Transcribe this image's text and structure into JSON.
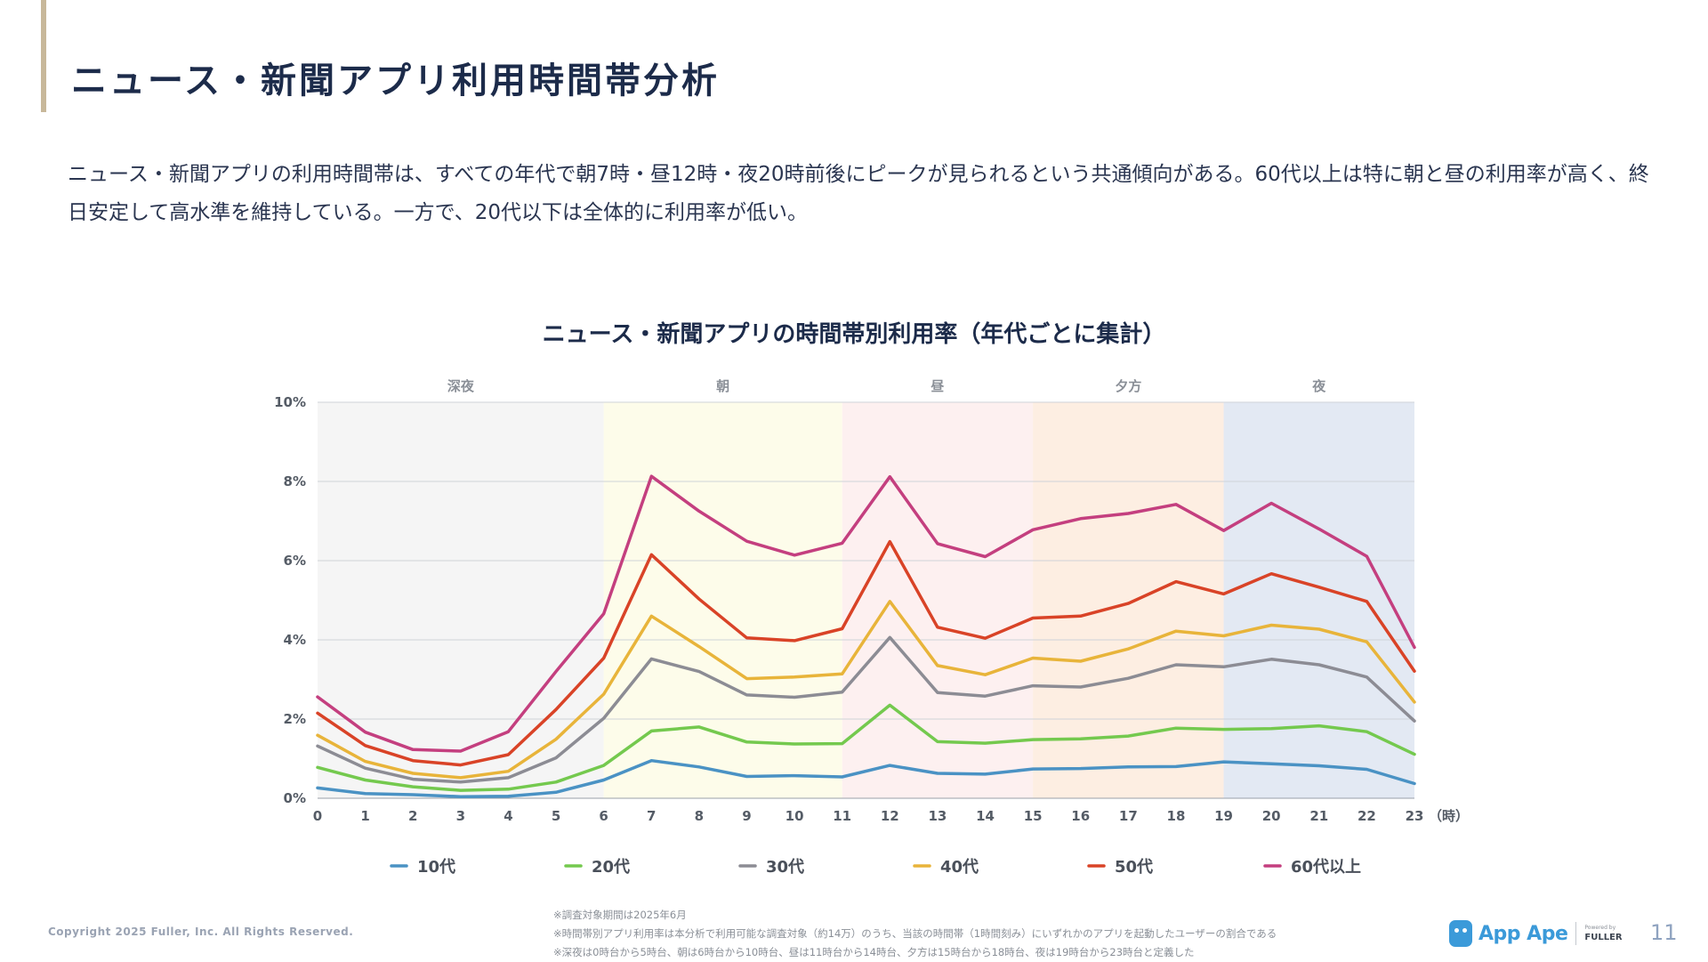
{
  "header": {
    "title": "ニュース・新聞アプリ利用時間帯分析",
    "description": "ニュース・新聞アプリの利用時間帯は、すべての年代で朝7時・昼12時・夜20時前後にピークが見られるという共通傾向がある。60代以上は特に朝と昼の利用率が高く、終日安定して高水準を維持している。一方で、20代以下は全体的に利用率が低い。"
  },
  "chart_data": {
    "type": "line",
    "title": "ニュース・新聞アプリの時間帯別利用率（年代ごとに集計）",
    "xlabel": "（時）",
    "ylabel": "",
    "x": [
      0,
      1,
      2,
      3,
      4,
      5,
      6,
      7,
      8,
      9,
      10,
      11,
      12,
      13,
      14,
      15,
      16,
      17,
      18,
      19,
      20,
      21,
      22,
      23
    ],
    "ylim": [
      0,
      10
    ],
    "yticks": [
      "0%",
      "2%",
      "4%",
      "6%",
      "8%",
      "10%"
    ],
    "grid": true,
    "legend_position": "bottom",
    "periods": [
      {
        "label": "深夜",
        "start": 0,
        "end": 6,
        "color": "#f5f5f5"
      },
      {
        "label": "朝",
        "start": 6,
        "end": 11,
        "color": "#fdfcea"
      },
      {
        "label": "昼",
        "start": 11,
        "end": 15,
        "color": "#fdf0f0"
      },
      {
        "label": "夕方",
        "start": 15,
        "end": 19,
        "color": "#fdeee2"
      },
      {
        "label": "夜",
        "start": 19,
        "end": 23,
        "color": "#e3e9f3"
      }
    ],
    "series": [
      {
        "name": "10代",
        "color": "#4a92c4",
        "values": [
          0.26,
          0.12,
          0.09,
          0.04,
          0.05,
          0.15,
          0.46,
          0.95,
          0.79,
          0.55,
          0.57,
          0.54,
          0.83,
          0.63,
          0.61,
          0.74,
          0.75,
          0.79,
          0.8,
          0.92,
          0.87,
          0.82,
          0.73,
          0.37
        ]
      },
      {
        "name": "20代",
        "color": "#74c94e",
        "values": [
          0.78,
          0.46,
          0.29,
          0.2,
          0.23,
          0.41,
          0.83,
          1.7,
          1.8,
          1.42,
          1.37,
          1.38,
          2.35,
          1.43,
          1.39,
          1.48,
          1.5,
          1.57,
          1.77,
          1.74,
          1.76,
          1.83,
          1.68,
          1.11
        ]
      },
      {
        "name": "30代",
        "color": "#8c8c94",
        "values": [
          1.32,
          0.76,
          0.48,
          0.41,
          0.52,
          1.02,
          2.02,
          3.52,
          3.2,
          2.61,
          2.55,
          2.68,
          4.06,
          2.67,
          2.58,
          2.84,
          2.81,
          3.03,
          3.37,
          3.32,
          3.51,
          3.37,
          3.06,
          1.95
        ]
      },
      {
        "name": "40代",
        "color": "#e8b43a",
        "values": [
          1.59,
          0.93,
          0.63,
          0.52,
          0.68,
          1.49,
          2.63,
          4.6,
          3.83,
          3.02,
          3.06,
          3.14,
          4.97,
          3.35,
          3.12,
          3.54,
          3.46,
          3.77,
          4.22,
          4.1,
          4.37,
          4.27,
          3.95,
          2.43
        ]
      },
      {
        "name": "50代",
        "color": "#d94327",
        "values": [
          2.15,
          1.33,
          0.95,
          0.84,
          1.1,
          2.24,
          3.54,
          6.15,
          5.03,
          4.05,
          3.98,
          4.28,
          6.48,
          4.32,
          4.04,
          4.55,
          4.6,
          4.92,
          5.47,
          5.16,
          5.67,
          5.33,
          4.97,
          3.21
        ]
      },
      {
        "name": "60代以上",
        "color": "#c43f7f",
        "values": [
          2.56,
          1.67,
          1.23,
          1.19,
          1.68,
          3.2,
          4.66,
          8.13,
          7.25,
          6.49,
          6.14,
          6.44,
          8.12,
          6.43,
          6.1,
          6.78,
          7.06,
          7.19,
          7.42,
          6.76,
          7.45,
          6.8,
          6.11,
          3.81
        ]
      }
    ]
  },
  "footer": {
    "copyright": "Copyright 2025 Fuller, Inc. All Rights Reserved.",
    "notes": [
      "※調査対象期間は2025年6月",
      "※時間帯別アプリ利用率は本分析で利用可能な調査対象（約14万）のうち、当該の時間帯（1時間刻み）にいずれかのアプリを起動したユーザーの割合である",
      "※深夜は0時台から5時台、朝は6時台から10時台、昼は11時台から14時台、夕方は15時台から18時台、夜は19時台から23時台と定義した"
    ],
    "brand_name": "App Ape",
    "powered_by": "Powered by",
    "company": "FULLER",
    "page_number": "11"
  }
}
